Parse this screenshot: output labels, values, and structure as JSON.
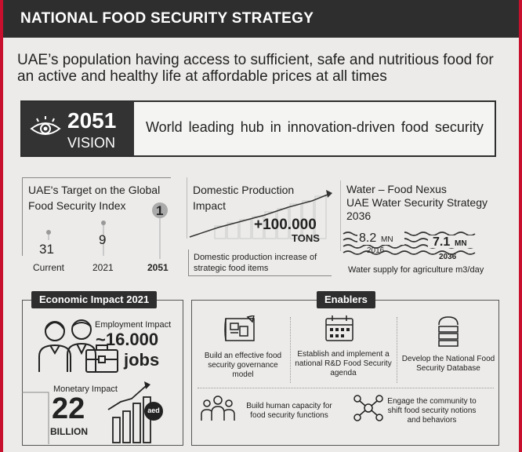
{
  "header": {
    "title": "NATIONAL FOOD SECURITY STRATEGY"
  },
  "mission": "UAE’s population having access to sufficient, safe and nutritious food for an active and healthy life at affordable prices at all times",
  "vision": {
    "year": "2051",
    "label": "VISION",
    "text": "World leading hub in innovation-driven food security"
  },
  "target": {
    "title": "UAE's Target on the Global Food Security Index",
    "points": [
      {
        "label": "Current",
        "value": "31"
      },
      {
        "label": "2021",
        "value": "9"
      },
      {
        "label": "2051",
        "value": "1"
      }
    ]
  },
  "domestic": {
    "title": "Domestic Production Impact",
    "value": "+100.000",
    "unit": "TONS",
    "description": "Domestic production increase of strategic food items"
  },
  "water": {
    "title": "Water – Food Nexus",
    "subtitle": "UAE Water Security Strategy 2036",
    "points": [
      {
        "value": "8.2",
        "unit": "MN",
        "year": "2016"
      },
      {
        "value": "7.1",
        "unit": "MN",
        "year": "2036"
      }
    ],
    "description": "Water supply for agriculture m3/day"
  },
  "economic": {
    "title": "Economic Impact 2021",
    "employment_label": "Employment Impact",
    "employment_value": "~16.000",
    "employment_unit": "jobs",
    "monetary_label": "Monetary Impact",
    "monetary_value": "22",
    "monetary_unit": "BILLION",
    "currency_badge": "aed"
  },
  "enablers": {
    "title": "Enablers",
    "items": [
      "Build an effective food security governance model",
      "Establish and implement a national R&D Food Security agenda",
      "Develop the National Food Security Database",
      "Build human capacity for food security functions",
      "Engage the community to shift food security notions and behaviors"
    ]
  },
  "icons": [
    "eye-icon",
    "blueprint-icon",
    "calendar-icon",
    "database-icon",
    "people-group-icon",
    "community-network-icon",
    "workers-icon",
    "briefcase-icon",
    "growth-chart-icon"
  ],
  "colors": {
    "dark": "#2e2e2e",
    "accent": "#c8102e",
    "background": "#ecebe9"
  }
}
